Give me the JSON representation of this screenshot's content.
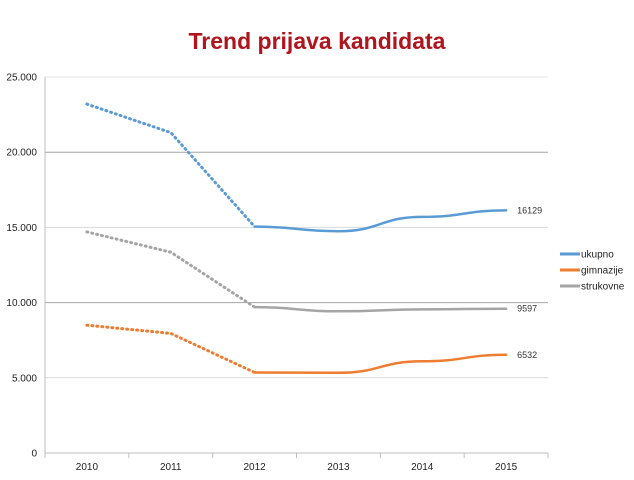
{
  "chart_data": {
    "type": "line",
    "title": "Trend prijava kandidata",
    "x": [
      "2010",
      "2011",
      "2012",
      "2013",
      "2014",
      "2015"
    ],
    "ylim": [
      0,
      25000
    ],
    "yticks": [
      0,
      5000,
      10000,
      15000,
      20000,
      25000
    ],
    "ytick_labels": [
      "0",
      "5.000",
      "10.000",
      "15.000",
      "20.000",
      "25.000"
    ],
    "grid": true,
    "legend_position": "right",
    "series": [
      {
        "name": "ukupno",
        "color": "#5b9bd5",
        "values": [
          23200,
          21300,
          15050,
          14750,
          15700,
          16129
        ],
        "end_label": "16129"
      },
      {
        "name": "gimnazije",
        "color": "#ed7d31",
        "values": [
          8500,
          7950,
          5350,
          5330,
          6100,
          6532
        ],
        "end_label": "6532"
      },
      {
        "name": "strukovne",
        "color": "#a5a5a5",
        "values": [
          14700,
          13350,
          9700,
          9420,
          9550,
          9597
        ],
        "end_label": "9597"
      }
    ],
    "dotted_until_index": 2
  }
}
